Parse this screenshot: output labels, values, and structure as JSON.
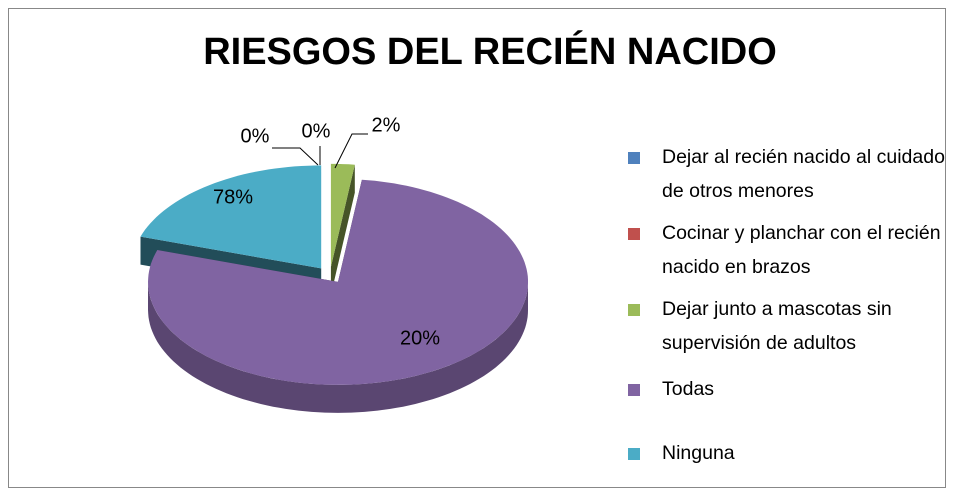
{
  "chart_data": {
    "type": "pie",
    "title": "RIESGOS DEL RECIÉN NACIDO",
    "categories": [
      "Dejar al recién nacido al cuidado de otros menores",
      "Cocinar y planchar con el recién nacido en brazos",
      "Dejar junto a mascotas sin supervisión de adultos",
      "Todas",
      "Ninguna"
    ],
    "values": [
      0,
      0,
      2,
      78,
      20
    ],
    "value_labels": [
      "0%",
      "0%",
      "2%",
      "78%",
      "20%"
    ],
    "colors": [
      "#4f81bd",
      "#c0504d",
      "#9bbb59",
      "#8064a2",
      "#4bacc6"
    ],
    "legend": "right"
  }
}
